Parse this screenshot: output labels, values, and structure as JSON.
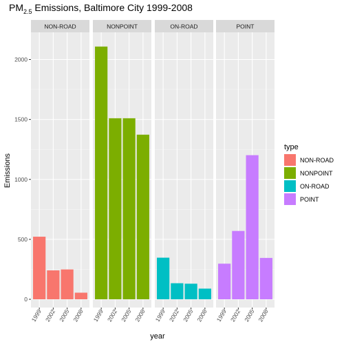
{
  "chart_data": {
    "type": "bar",
    "title_main": "PM",
    "title_sub": "2.5",
    "title_rest": " Emissions, Baltimore City 1999-2008",
    "xlabel": "year",
    "ylabel": "Emissions",
    "ylim": [
      0,
      2200
    ],
    "yticks": [
      0,
      500,
      1000,
      1500,
      2000
    ],
    "categories": [
      "1999",
      "2002",
      "2005",
      "2008"
    ],
    "legend_title": "type",
    "legend_position": "right",
    "grid": true,
    "facets": [
      {
        "name": "NON-ROAD",
        "color": "#F8766D",
        "values": [
          522,
          241,
          249,
          55
        ]
      },
      {
        "name": "NONPOINT",
        "color": "#7CAE00",
        "values": [
          2108,
          1510,
          1510,
          1373
        ]
      },
      {
        "name": "ON-ROAD",
        "color": "#00BFC4",
        "values": [
          347,
          134,
          130,
          89
        ]
      },
      {
        "name": "POINT",
        "color": "#C77CFF",
        "values": [
          297,
          570,
          1202,
          345
        ]
      }
    ]
  }
}
